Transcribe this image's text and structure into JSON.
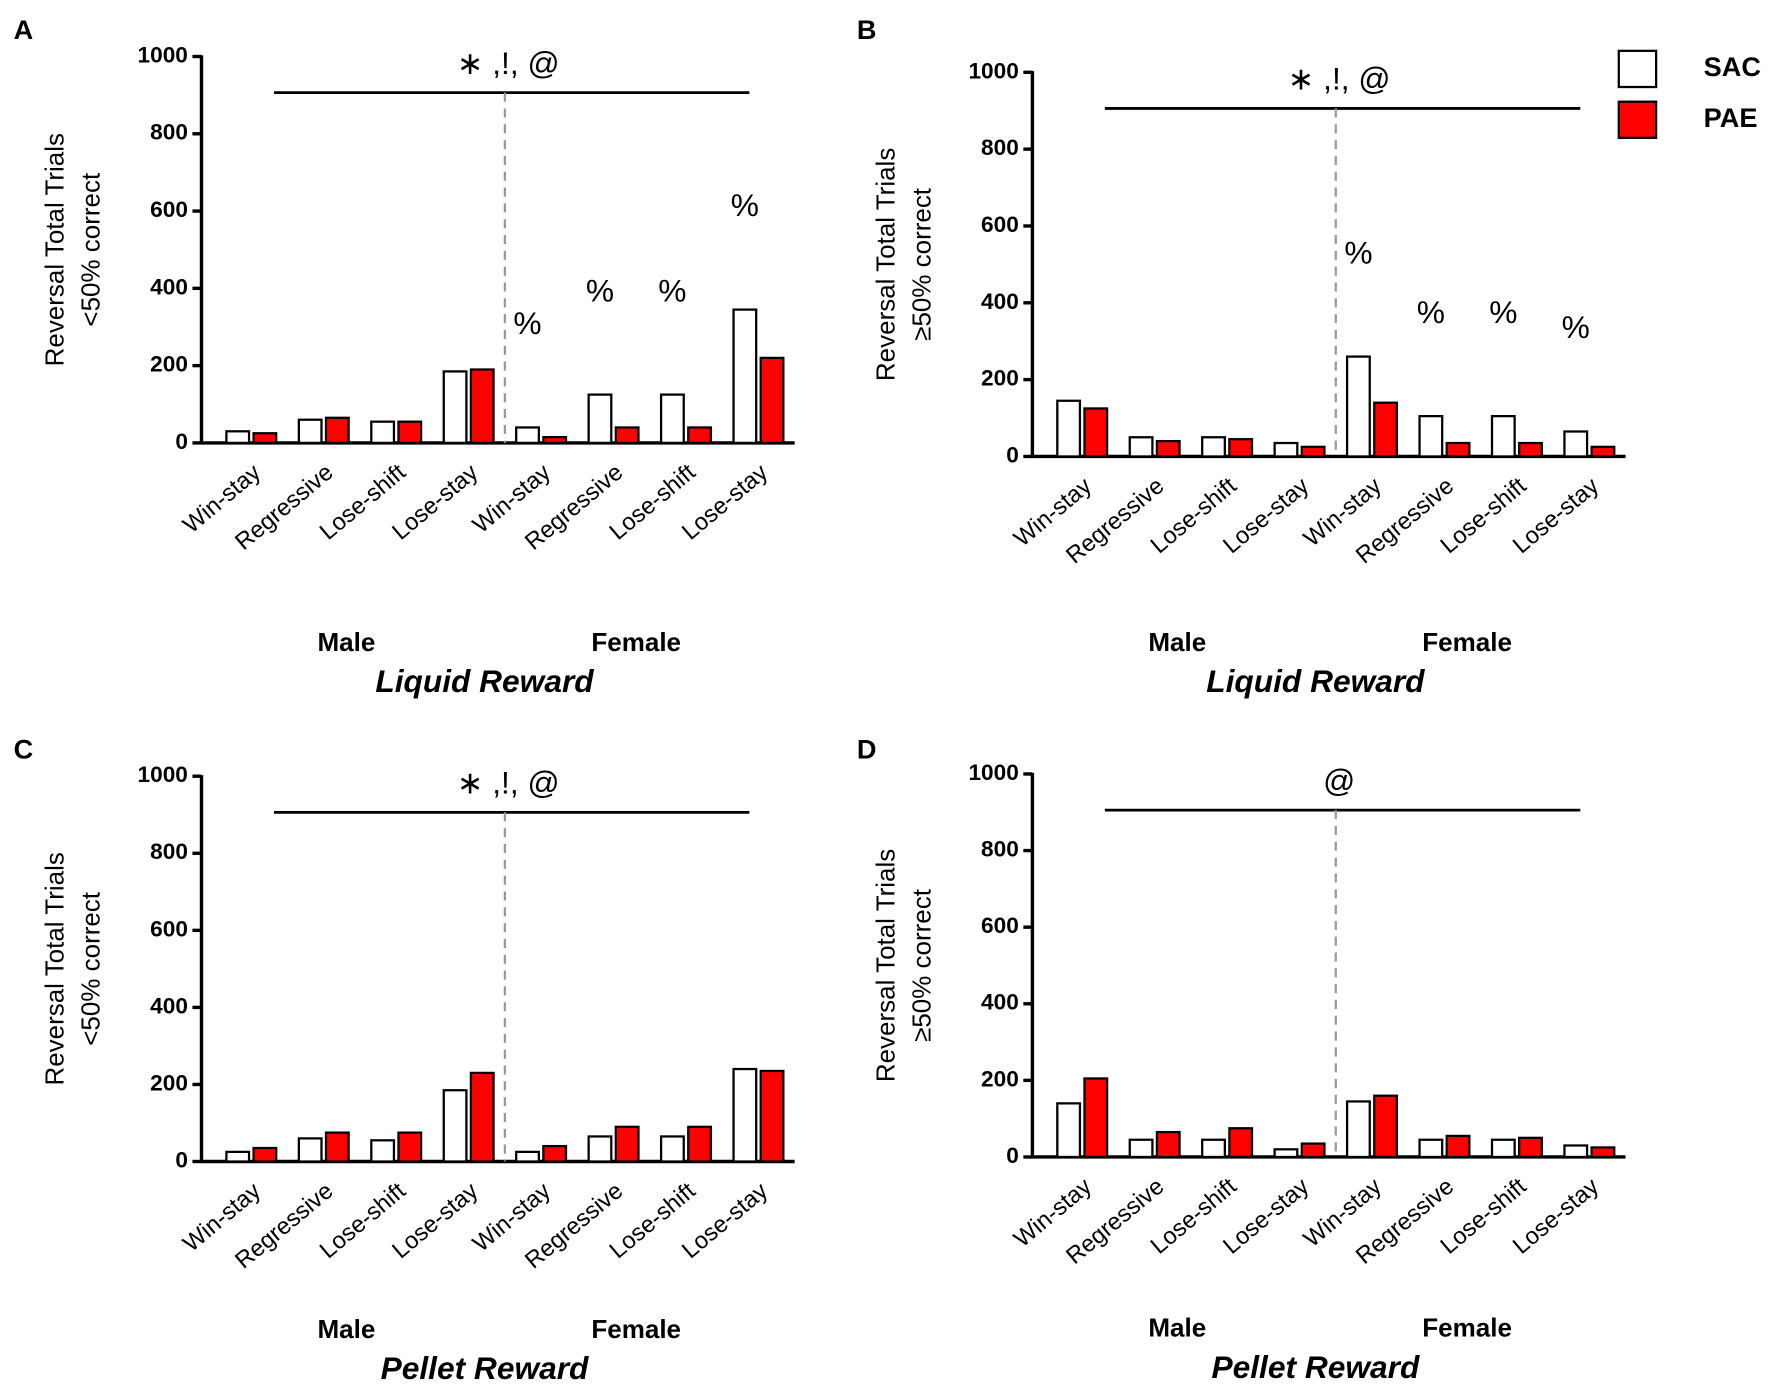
{
  "legend": {
    "corner": "upper right",
    "series": [
      {
        "name": "SAC",
        "color": "#ffffff"
      },
      {
        "name": "PAE",
        "color": "#ff0000"
      }
    ]
  },
  "chart_data": [
    {
      "type": "bar",
      "panel": "A",
      "y_label": [
        "Reversal Total Trials",
        "<50% correct"
      ],
      "categories": [
        "Win-stay",
        "Regressive",
        "Lose-shift",
        "Lose-stay",
        "Win-stay",
        "Regressive",
        "Lose-shift",
        "Lose-stay"
      ],
      "groups": [
        "Male",
        "Female"
      ],
      "x_label": "Liquid Reward",
      "series": [
        {
          "values": [
            30,
            60,
            55,
            185,
            40,
            125,
            125,
            345
          ]
        },
        {
          "values": [
            25,
            65,
            55,
            190,
            15,
            40,
            40,
            220
          ]
        }
      ],
      "percent_labels": [
        null,
        null,
        null,
        null,
        "%",
        "%",
        "%",
        "%"
      ],
      "significance": "∗ ,!, @",
      "ylim": [
        0,
        1000
      ],
      "yticks": [
        0,
        200,
        400,
        600,
        800,
        1000
      ]
    },
    {
      "type": "bar",
      "panel": "B",
      "y_label": [
        "Reversal Total Trials",
        "≥50% correct"
      ],
      "categories": [
        "Win-stay",
        "Regressive",
        "Lose-shift",
        "Lose-stay",
        "Win-stay",
        "Regressive",
        "Lose-shift",
        "Lose-stay"
      ],
      "groups": [
        "Male",
        "Female"
      ],
      "x_label": "Liquid Reward",
      "series": [
        {
          "values": [
            145,
            50,
            50,
            35,
            260,
            105,
            105,
            65
          ]
        },
        {
          "values": [
            125,
            40,
            45,
            25,
            140,
            35,
            35,
            25
          ]
        }
      ],
      "percent_labels": [
        null,
        null,
        null,
        null,
        "%",
        "%",
        "%",
        "%"
      ],
      "significance": "∗ ,!, @",
      "ylim": [
        0,
        1000
      ],
      "yticks": [
        0,
        200,
        400,
        600,
        800,
        1000
      ]
    },
    {
      "type": "bar",
      "panel": "C",
      "y_label": [
        "Reversal Total Trials",
        "<50% correct"
      ],
      "categories": [
        "Win-stay",
        "Regressive",
        "Lose-shift",
        "Lose-stay",
        "Win-stay",
        "Regressive",
        "Lose-shift",
        "Lose-stay"
      ],
      "groups": [
        "Male",
        "Female"
      ],
      "x_label": "Pellet Reward",
      "series": [
        {
          "values": [
            25,
            60,
            55,
            185,
            25,
            65,
            65,
            240
          ]
        },
        {
          "values": [
            35,
            75,
            75,
            230,
            40,
            90,
            90,
            235
          ]
        }
      ],
      "significance": "∗ ,!, @",
      "ylim": [
        0,
        1000
      ],
      "yticks": [
        0,
        200,
        400,
        600,
        800,
        1000
      ]
    },
    {
      "type": "bar",
      "panel": "D",
      "y_label": [
        "Reversal Total Trials",
        "≥50% correct"
      ],
      "categories": [
        "Win-stay",
        "Regressive",
        "Lose-shift",
        "Lose-stay",
        "Win-stay",
        "Regressive",
        "Lose-shift",
        "Lose-stay"
      ],
      "groups": [
        "Male",
        "Female"
      ],
      "x_label": "Pellet Reward",
      "series": [
        {
          "values": [
            140,
            45,
            45,
            20,
            145,
            45,
            45,
            30
          ]
        },
        {
          "values": [
            205,
            65,
            75,
            35,
            160,
            55,
            50,
            25
          ]
        }
      ],
      "significance": "@",
      "ylim": [
        0,
        1000
      ],
      "yticks": [
        0,
        200,
        400,
        600,
        800,
        1000
      ]
    }
  ]
}
